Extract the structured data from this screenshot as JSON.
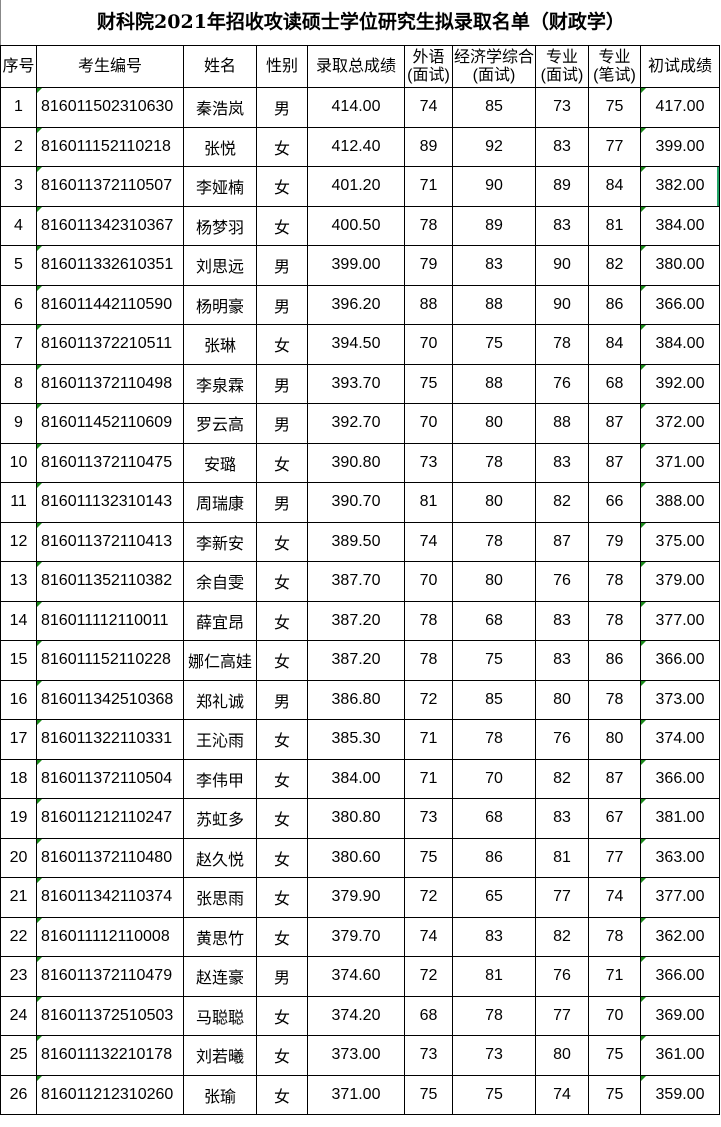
{
  "title": "财科院2021年招收攻读硕士学位研究生拟录取名单（财政学）",
  "columns": [
    "序号",
    "考生编号",
    "姓名",
    "性别",
    "录取总成绩",
    "外语(面试)",
    "经济学综合(面试)",
    "专业(面试)",
    "专业(笔试)",
    "初试成绩"
  ],
  "rows": [
    [
      "1",
      "816011502310630",
      "秦浩岚",
      "男",
      "414.00",
      "74",
      "85",
      "73",
      "75",
      "417.00"
    ],
    [
      "2",
      "816011152110218",
      "张悦",
      "女",
      "412.40",
      "89",
      "92",
      "83",
      "77",
      "399.00"
    ],
    [
      "3",
      "816011372110507",
      "李娅楠",
      "女",
      "401.20",
      "71",
      "90",
      "89",
      "84",
      "382.00"
    ],
    [
      "4",
      "816011342310367",
      "杨梦羽",
      "女",
      "400.50",
      "78",
      "89",
      "83",
      "81",
      "384.00"
    ],
    [
      "5",
      "816011332610351",
      "刘思远",
      "男",
      "399.00",
      "79",
      "83",
      "90",
      "82",
      "380.00"
    ],
    [
      "6",
      "816011442110590",
      "杨明豪",
      "男",
      "396.20",
      "88",
      "88",
      "90",
      "86",
      "366.00"
    ],
    [
      "7",
      "816011372210511",
      "张琳",
      "女",
      "394.50",
      "70",
      "75",
      "78",
      "84",
      "384.00"
    ],
    [
      "8",
      "816011372110498",
      "李泉霖",
      "男",
      "393.70",
      "75",
      "88",
      "76",
      "68",
      "392.00"
    ],
    [
      "9",
      "816011452110609",
      "罗云高",
      "男",
      "392.70",
      "70",
      "80",
      "88",
      "87",
      "372.00"
    ],
    [
      "10",
      "816011372110475",
      "安璐",
      "女",
      "390.80",
      "73",
      "78",
      "83",
      "87",
      "371.00"
    ],
    [
      "11",
      "816011132310143",
      "周瑞康",
      "男",
      "390.70",
      "81",
      "80",
      "82",
      "66",
      "388.00"
    ],
    [
      "12",
      "816011372110413",
      "李新安",
      "女",
      "389.50",
      "74",
      "78",
      "87",
      "79",
      "375.00"
    ],
    [
      "13",
      "816011352110382",
      "余自雯",
      "女",
      "387.70",
      "70",
      "80",
      "76",
      "78",
      "379.00"
    ],
    [
      "14",
      "816011112110011",
      "薛宜昂",
      "女",
      "387.20",
      "78",
      "68",
      "83",
      "78",
      "377.00"
    ],
    [
      "15",
      "816011152110228",
      "娜仁高娃",
      "女",
      "387.20",
      "78",
      "75",
      "83",
      "86",
      "366.00"
    ],
    [
      "16",
      "816011342510368",
      "郑礼诚",
      "男",
      "386.80",
      "72",
      "85",
      "80",
      "78",
      "373.00"
    ],
    [
      "17",
      "816011322110331",
      "王沁雨",
      "女",
      "385.30",
      "71",
      "78",
      "76",
      "80",
      "374.00"
    ],
    [
      "18",
      "816011372110504",
      "李伟甲",
      "女",
      "384.00",
      "71",
      "70",
      "82",
      "87",
      "366.00"
    ],
    [
      "19",
      "816011212110247",
      "苏虹多",
      "女",
      "380.80",
      "73",
      "68",
      "83",
      "67",
      "381.00"
    ],
    [
      "20",
      "816011372110480",
      "赵久悦",
      "女",
      "380.60",
      "75",
      "86",
      "81",
      "77",
      "363.00"
    ],
    [
      "21",
      "816011342110374",
      "张思雨",
      "女",
      "379.90",
      "72",
      "65",
      "77",
      "74",
      "377.00"
    ],
    [
      "22",
      "816011112110008",
      "黄思竹",
      "女",
      "379.70",
      "74",
      "83",
      "82",
      "78",
      "362.00"
    ],
    [
      "23",
      "816011372110479",
      "赵连豪",
      "男",
      "374.60",
      "72",
      "81",
      "76",
      "71",
      "366.00"
    ],
    [
      "24",
      "816011372510503",
      "马聪聪",
      "女",
      "374.20",
      "68",
      "78",
      "77",
      "70",
      "369.00"
    ],
    [
      "25",
      "816011132210178",
      "刘若曦",
      "女",
      "373.00",
      "73",
      "73",
      "80",
      "75",
      "361.00"
    ],
    [
      "26",
      "816011212310260",
      "张瑜",
      "女",
      "371.00",
      "75",
      "75",
      "74",
      "75",
      "359.00"
    ]
  ]
}
